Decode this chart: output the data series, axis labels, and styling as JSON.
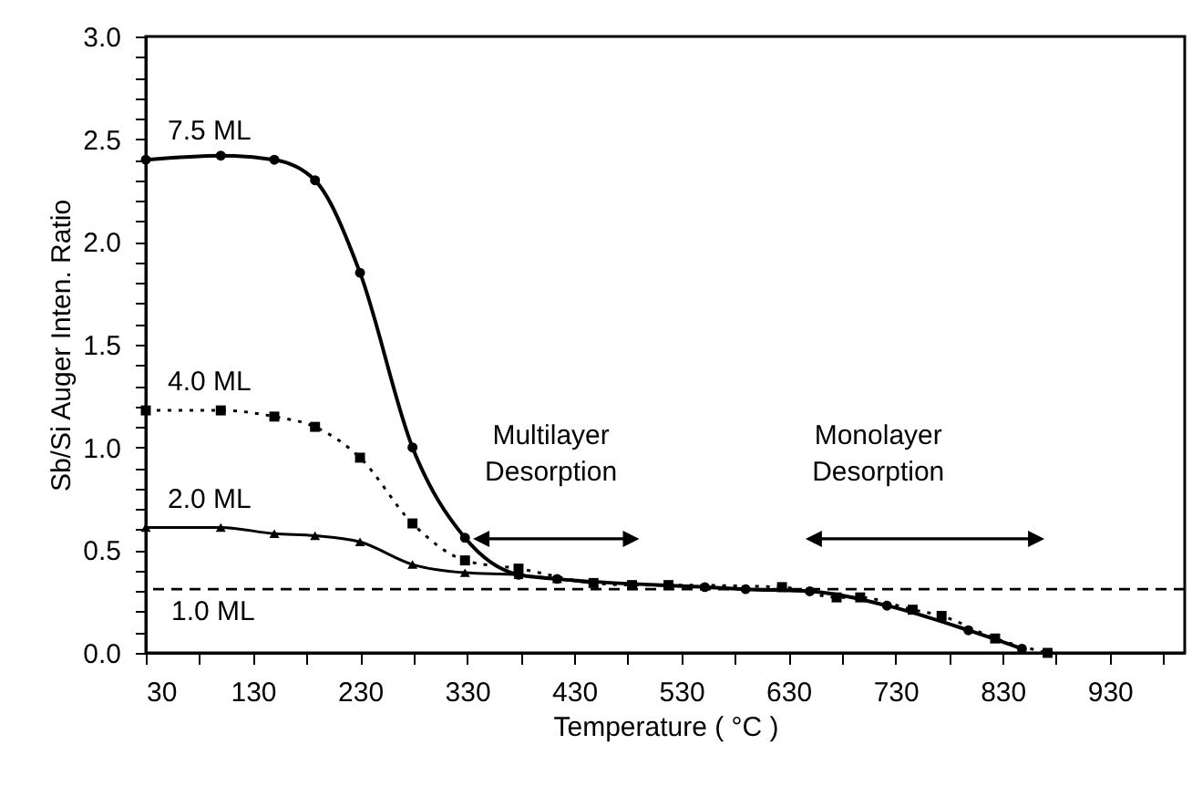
{
  "chart_data": {
    "type": "line",
    "xlabel": "Temperature ( °C )",
    "ylabel": "Sb/Si Auger Inten. Ratio",
    "xlim": [
      30,
      1000
    ],
    "ylim": [
      0,
      3
    ],
    "xticks": [
      30,
      {
        "value": 80,
        "label": null
      },
      130,
      {
        "value": 180,
        "label": null
      },
      230,
      {
        "value": 280,
        "label": null
      },
      330,
      {
        "value": 380,
        "label": null
      },
      430,
      {
        "value": 480,
        "label": null
      },
      530,
      {
        "value": 580,
        "label": null
      },
      630,
      {
        "value": 680,
        "label": null
      },
      730,
      {
        "value": 780,
        "label": null
      },
      830,
      {
        "value": 880,
        "label": null
      },
      930,
      {
        "value": 980,
        "label": null
      }
    ],
    "yticks": [
      {
        "value": 0,
        "label": "0.0"
      },
      {
        "value": 0.1,
        "label": null
      },
      {
        "value": 0.2,
        "label": null
      },
      {
        "value": 0.3,
        "label": null
      },
      {
        "value": 0.4,
        "label": null
      },
      {
        "value": 0.5,
        "label": "0.5"
      },
      {
        "value": 0.6,
        "label": null
      },
      {
        "value": 0.7,
        "label": null
      },
      {
        "value": 0.8,
        "label": null
      },
      {
        "value": 0.9,
        "label": null
      },
      {
        "value": 1,
        "label": "1.0"
      },
      {
        "value": 1.1,
        "label": null
      },
      {
        "value": 1.2,
        "label": null
      },
      {
        "value": 1.3,
        "label": null
      },
      {
        "value": 1.4,
        "label": null
      },
      {
        "value": 1.5,
        "label": "1.5"
      },
      {
        "value": 1.6,
        "label": null
      },
      {
        "value": 1.7,
        "label": null
      },
      {
        "value": 1.8,
        "label": null
      },
      {
        "value": 1.9,
        "label": null
      },
      {
        "value": 2,
        "label": "2.0"
      },
      {
        "value": 2.1,
        "label": null
      },
      {
        "value": 2.2,
        "label": null
      },
      {
        "value": 2.3,
        "label": null
      },
      {
        "value": 2.4,
        "label": null
      },
      {
        "value": 2.5,
        "label": "2.5"
      },
      {
        "value": 2.6,
        "label": null
      },
      {
        "value": 2.7,
        "label": null
      },
      {
        "value": 2.8,
        "label": null
      },
      {
        "value": 2.9,
        "label": null
      },
      {
        "value": 3,
        "label": "3.0"
      }
    ],
    "grid": false,
    "legend": false,
    "series": [
      {
        "name": "7.5 ML",
        "color": "#000000",
        "marker": "circle",
        "line_style": "solid",
        "x": [
          30,
          100,
          150,
          188,
          230,
          279,
          328,
          378,
          414,
          552,
          590,
          650,
          722,
          798,
          848
        ],
        "values": [
          2.4,
          2.42,
          2.4,
          2.3,
          1.85,
          1.0,
          0.56,
          0.38,
          0.36,
          0.32,
          0.31,
          0.3,
          0.23,
          0.11,
          0.02
        ]
      },
      {
        "name": "4.0 ML",
        "color": "#000000",
        "marker": "square",
        "line_style": "dotted",
        "x": [
          30,
          100,
          150,
          188,
          230,
          279,
          328,
          378,
          448,
          484,
          518,
          624,
          675,
          697,
          746,
          773,
          823,
          872
        ],
        "values": [
          1.18,
          1.18,
          1.15,
          1.1,
          0.95,
          0.63,
          0.45,
          0.41,
          0.34,
          0.33,
          0.33,
          0.32,
          0.27,
          0.27,
          0.21,
          0.18,
          0.07,
          0.0
        ]
      },
      {
        "name": "2.0 ML",
        "color": "#000000",
        "marker": "triangle",
        "line_style": "solid",
        "x": [
          30,
          100,
          150,
          188,
          230,
          279,
          328,
          378,
          414,
          448
        ],
        "values": [
          0.61,
          0.61,
          0.58,
          0.57,
          0.54,
          0.43,
          0.39,
          0.38,
          0.36,
          0.34
        ]
      }
    ],
    "ref_lines": [
      {
        "axis": "y",
        "value": 0.31,
        "label": "1.0 ML",
        "line_style": "dashed"
      }
    ],
    "annotations": [
      "Multilayer Desorption",
      "Monolayer Desorption"
    ]
  }
}
